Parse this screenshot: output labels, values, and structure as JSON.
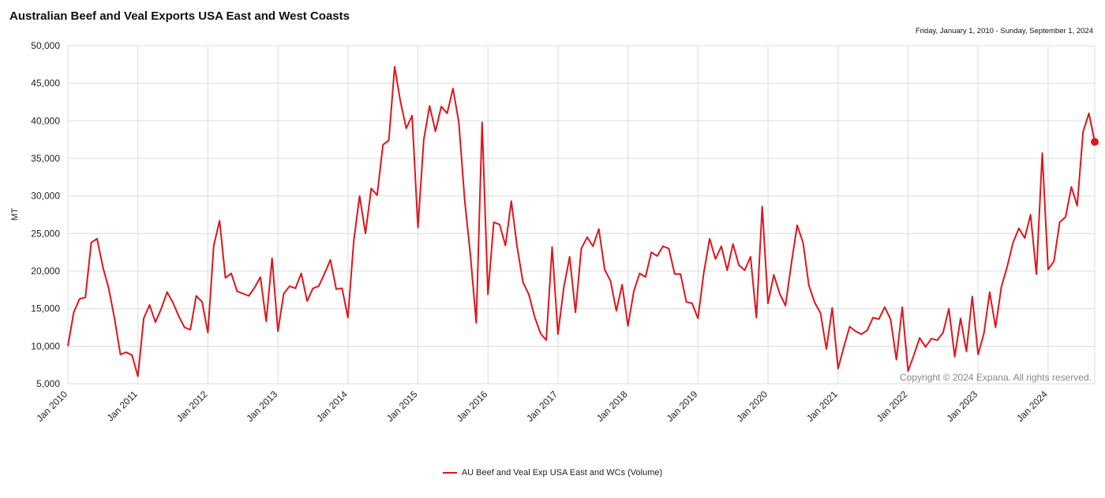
{
  "header": {
    "title": "Australian Beef and Veal Exports USA East and West Coasts",
    "date_range": "Friday, January 1, 2010 - Sunday, September 1, 2024"
  },
  "copyright": "Copyright © 2024 Expana. All rights reserved.",
  "colors": {
    "series": "#e0151b",
    "grid": "#dcdcdc"
  },
  "chart_data": {
    "type": "line",
    "title": "Australian Beef and Veal Exports USA East and West Coasts",
    "ylabel": "MT",
    "xlabel": "",
    "ylim": [
      5000,
      50000
    ],
    "yticks": [
      5000,
      10000,
      15000,
      20000,
      25000,
      30000,
      35000,
      40000,
      45000,
      50000
    ],
    "ytick_labels": [
      "5,000",
      "10,000",
      "15,000",
      "20,000",
      "25,000",
      "30,000",
      "35,000",
      "40,000",
      "45,000",
      "50,000"
    ],
    "xtick_labels": [
      "Jan 2010",
      "Jan 2011",
      "Jan 2012",
      "Jan 2013",
      "Jan 2014",
      "Jan 2015",
      "Jan 2016",
      "Jan 2017",
      "Jan 2018",
      "Jan 2019",
      "Jan 2020",
      "Jan 2021",
      "Jan 2022",
      "Jan 2023",
      "Jan 2024"
    ],
    "x_start": "2010-01",
    "x_end": "2024-09",
    "frequency": "monthly",
    "grid": true,
    "legend": "bottom-center",
    "series": [
      {
        "name": "AU Beef and Veal Exp USA East and WCs (Volume)",
        "values": [
          10000,
          14500,
          16300,
          16500,
          23800,
          24300,
          20500,
          17700,
          13700,
          8900,
          9200,
          8800,
          6000,
          13700,
          15500,
          13200,
          15000,
          17200,
          15800,
          14000,
          12500,
          12200,
          16700,
          15900,
          11800,
          23400,
          26700,
          19100,
          19700,
          17300,
          17000,
          16700,
          17800,
          19200,
          13300,
          21700,
          12000,
          17000,
          18000,
          17700,
          19700,
          16000,
          17700,
          18000,
          19700,
          21500,
          17600,
          17700,
          13800,
          24000,
          30000,
          25000,
          31000,
          30100,
          36800,
          37400,
          47200,
          42600,
          39000,
          40700,
          25800,
          37500,
          42000,
          38600,
          41900,
          41000,
          44300,
          39800,
          29500,
          22000,
          13100,
          39800,
          16900,
          26500,
          26200,
          23400,
          29300,
          23200,
          18500,
          16900,
          13900,
          11700,
          10800,
          23200,
          11600,
          17800,
          21900,
          14500,
          23000,
          24500,
          23300,
          25600,
          20200,
          18700,
          14700,
          18200,
          12700,
          17300,
          19700,
          19200,
          22500,
          22000,
          23300,
          23000,
          19600,
          19600,
          15900,
          15700,
          13700,
          19800,
          24300,
          21600,
          23300,
          20100,
          23600,
          20800,
          20100,
          21900,
          13800,
          28600,
          15700,
          19500,
          17000,
          15400,
          21000,
          26100,
          23800,
          18100,
          15800,
          14400,
          9600,
          15100,
          7000,
          9900,
          12600,
          12000,
          11600,
          12100,
          13800,
          13600,
          15200,
          13600,
          8200,
          15200,
          6700,
          8800,
          11100,
          9900,
          11000,
          10800,
          11800,
          15000,
          8600,
          13700,
          9300,
          16600,
          8900,
          11700,
          17200,
          12500,
          17900,
          20600,
          23800,
          25700,
          24400,
          27500,
          19600,
          35700,
          20200,
          21300,
          26500,
          27200,
          31200,
          28700,
          38500,
          41000,
          37200
        ]
      }
    ]
  }
}
